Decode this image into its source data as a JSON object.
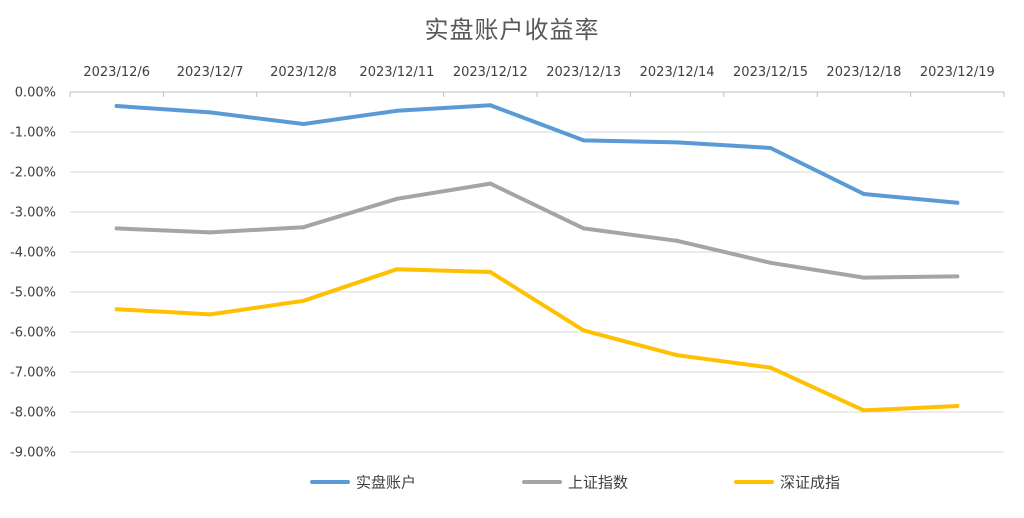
{
  "chart_data": {
    "type": "line",
    "title": "实盘账户收益率",
    "xlabel": "",
    "ylabel": "",
    "categories": [
      "2023/12/6",
      "2023/12/7",
      "2023/12/8",
      "2023/12/11",
      "2023/12/12",
      "2023/12/13",
      "2023/12/14",
      "2023/12/15",
      "2023/12/18",
      "2023/12/19"
    ],
    "x_axis_position": "top",
    "ylim": [
      -9.0,
      0.0
    ],
    "y_ticks": [
      "0.00%",
      "-1.00%",
      "-2.00%",
      "-3.00%",
      "-4.00%",
      "-5.00%",
      "-6.00%",
      "-7.00%",
      "-8.00%",
      "-9.00%"
    ],
    "y_unit": "%",
    "grid": true,
    "legend_position": "bottom",
    "series": [
      {
        "name": "实盘账户",
        "color": "#5b9bd5",
        "values": [
          -0.35,
          -0.51,
          -0.8,
          -0.47,
          -0.33,
          -1.21,
          -1.26,
          -1.4,
          -2.55,
          -2.77
        ]
      },
      {
        "name": "上证指数",
        "color": "#a5a5a5",
        "values": [
          -3.41,
          -3.51,
          -3.38,
          -2.67,
          -2.29,
          -3.41,
          -3.72,
          -4.27,
          -4.64,
          -4.61
        ]
      },
      {
        "name": "深证成指",
        "color": "#ffc000",
        "values": [
          -5.43,
          -5.56,
          -5.22,
          -4.43,
          -4.5,
          -5.96,
          -6.58,
          -6.89,
          -7.96,
          -7.85
        ]
      }
    ]
  }
}
